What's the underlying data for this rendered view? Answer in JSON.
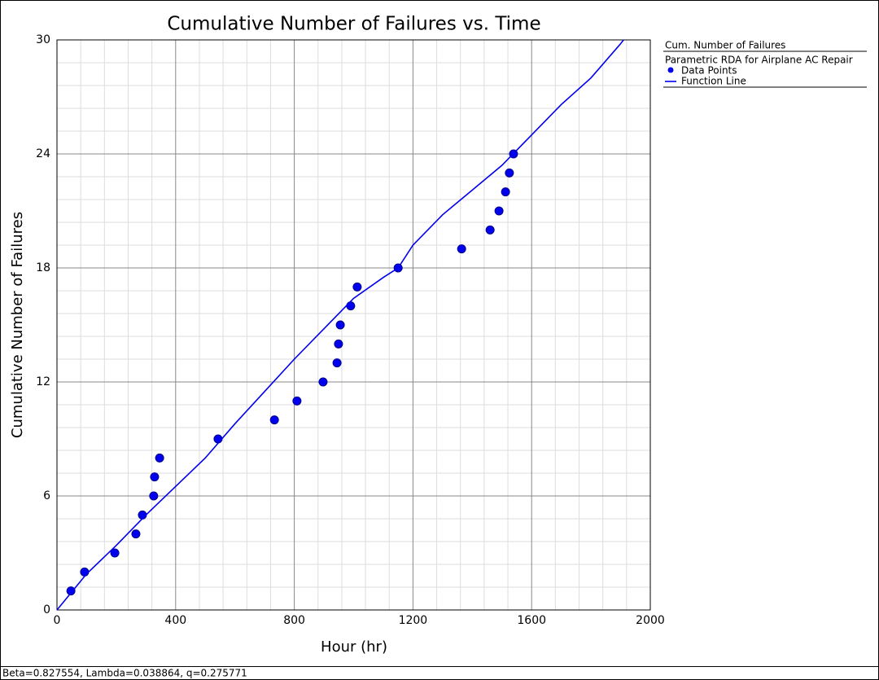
{
  "chart_data": {
    "type": "scatter",
    "title": "Cumulative Number of Failures vs. Time",
    "x_label": "Hour (hr)",
    "y_label": "Cumulative Number of Failures",
    "xlim": [
      0,
      2000
    ],
    "xticks": [
      0,
      400,
      800,
      1200,
      1600,
      2000
    ],
    "ylim": [
      0,
      30
    ],
    "yticks": [
      0,
      6,
      12,
      18,
      24,
      30
    ],
    "grid": true,
    "legend_title": "Cum. Number of Failures",
    "legend_subtitle": "Parametric RDA for Airplane AC Repair",
    "legend_position": "right",
    "series": [
      {
        "name": "Data Points",
        "type": "scatter",
        "color": "#0000ee",
        "x": [
          47,
          93,
          195,
          266,
          288,
          326,
          329,
          346,
          543,
          733,
          809,
          897,
          944,
          949,
          955,
          990,
          1012,
          1150,
          1364,
          1460,
          1490,
          1512,
          1525,
          1539
        ],
        "values": [
          1,
          2,
          3,
          4,
          5,
          6,
          7,
          8,
          9,
          10,
          11,
          12,
          13,
          14,
          15,
          16,
          17,
          18,
          19,
          20,
          21,
          22,
          23,
          24
        ]
      },
      {
        "name": "Function Line",
        "type": "line",
        "color": "#0000ee",
        "x": [
          0,
          100,
          200,
          300,
          400,
          500,
          600,
          700,
          800,
          900,
          1000,
          1100,
          1150,
          1200,
          1300,
          1400,
          1500,
          1600,
          1700,
          1800,
          1900,
          1910
        ],
        "values": [
          0,
          1.9,
          3.4,
          5.0,
          6.5,
          8.0,
          9.8,
          11.5,
          13.2,
          14.8,
          16.4,
          17.5,
          18.0,
          19.2,
          20.8,
          22.1,
          23.4,
          25.0,
          26.6,
          28.0,
          29.8,
          30
        ]
      }
    ],
    "footnote": "Beta=0.827554, Lambda=0.038864, q=0.275771"
  }
}
